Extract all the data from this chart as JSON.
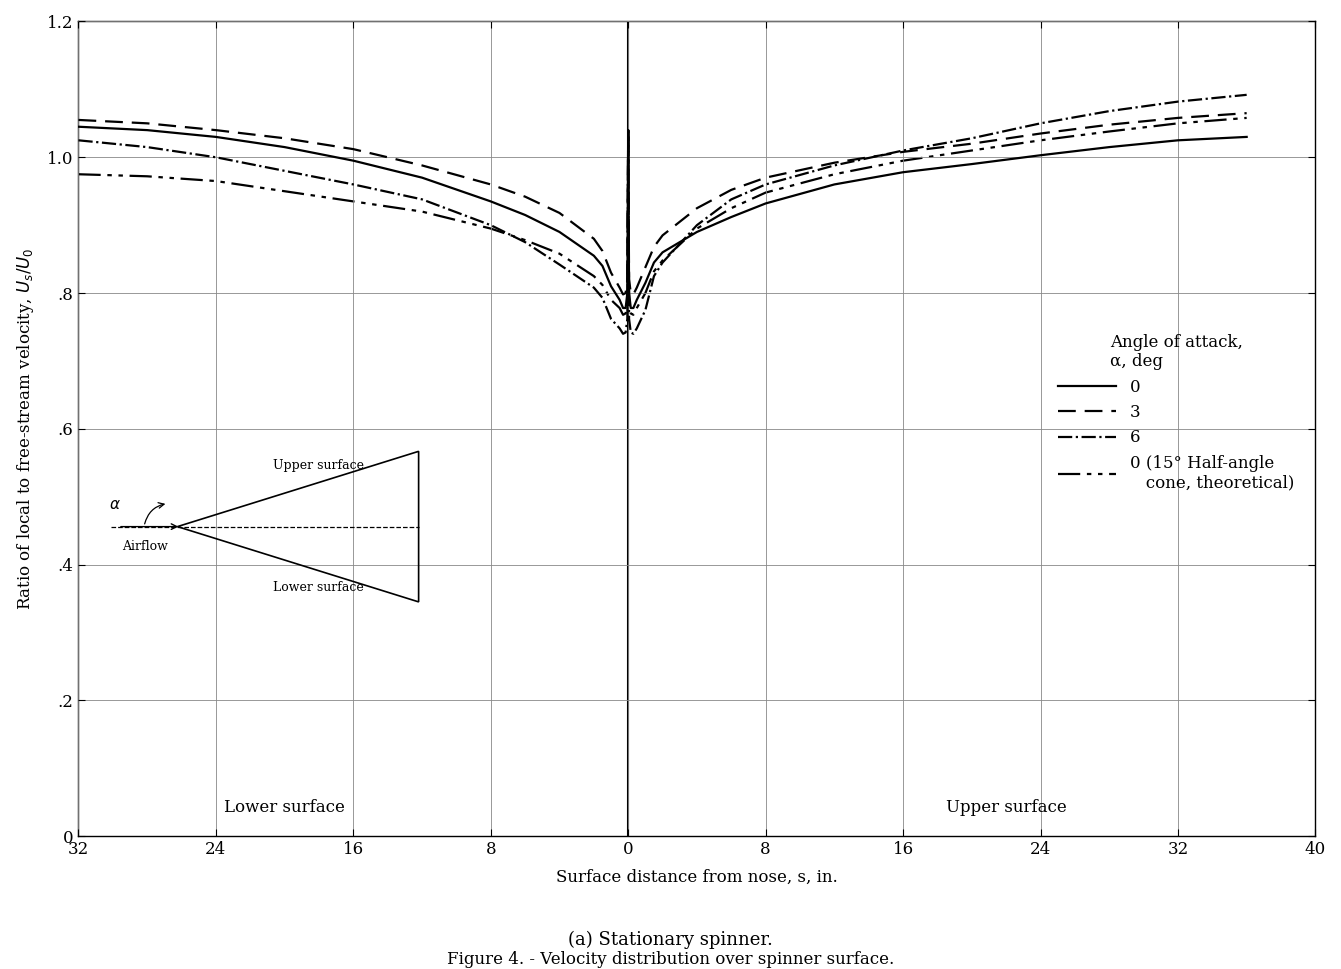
{
  "title_figure": "Figure 4. - Velocity distribution over spinner surface.",
  "subtitle": "(a) Stationary spinner.",
  "xlabel": "Surface distance from nose, s, in.",
  "ylabel": "Ratio of local to free-stream velocity, U_s/U_0",
  "xlim": [
    -32,
    40
  ],
  "ylim": [
    0,
    1.2
  ],
  "xticks": [
    -32,
    -24,
    -16,
    -8,
    0,
    8,
    16,
    24,
    32,
    40
  ],
  "yticks": [
    0,
    0.2,
    0.4,
    0.6,
    0.8,
    1.0,
    1.2
  ],
  "ytick_labels": [
    "0",
    ".2",
    ".4",
    ".6",
    ".8",
    "1.0",
    "1.2"
  ],
  "legend_title": "Angle of attack,\nα, deg",
  "legend_entries": [
    "0",
    "3",
    "6",
    "0 (15° Half-angle\n   cone, theoretical)"
  ],
  "background_color": "#ffffff",
  "line_color": "#000000",
  "label_lower_left": "Lower surface",
  "label_upper_right": "Upper surface",
  "curve_alpha0_x": [
    -32,
    -28,
    -24,
    -20,
    -16,
    -12,
    -8,
    -6,
    -4,
    -2,
    -1.5,
    -1.0,
    -0.5,
    -0.3,
    -0.15,
    -0.05,
    0.0,
    0.05,
    0.15,
    0.3,
    0.5,
    1.0,
    1.5,
    2,
    4,
    6,
    8,
    12,
    16,
    20,
    24,
    28,
    32,
    36
  ],
  "curve_alpha0_y": [
    1.045,
    1.04,
    1.03,
    1.015,
    0.995,
    0.97,
    0.935,
    0.915,
    0.89,
    0.855,
    0.84,
    0.81,
    0.79,
    0.778,
    0.778,
    0.8,
    1.04,
    0.8,
    0.778,
    0.778,
    0.79,
    0.815,
    0.845,
    0.86,
    0.89,
    0.912,
    0.932,
    0.96,
    0.978,
    0.99,
    1.003,
    1.015,
    1.025,
    1.03
  ],
  "curve_alpha3_x": [
    -32,
    -28,
    -24,
    -20,
    -16,
    -12,
    -8,
    -6,
    -4,
    -2,
    -1.5,
    -1.0,
    -0.5,
    -0.3,
    -0.15,
    -0.05,
    0.0,
    0.05,
    0.15,
    0.3,
    0.5,
    1.0,
    1.5,
    2,
    4,
    6,
    8,
    12,
    16,
    20,
    24,
    28,
    32,
    36
  ],
  "curve_alpha3_y": [
    1.055,
    1.05,
    1.04,
    1.028,
    1.012,
    0.988,
    0.96,
    0.942,
    0.918,
    0.88,
    0.862,
    0.83,
    0.808,
    0.798,
    0.8,
    0.82,
    1.04,
    0.82,
    0.8,
    0.798,
    0.808,
    0.838,
    0.868,
    0.885,
    0.925,
    0.952,
    0.97,
    0.992,
    1.008,
    1.02,
    1.035,
    1.048,
    1.058,
    1.065
  ],
  "curve_alpha6_x": [
    -32,
    -28,
    -24,
    -20,
    -16,
    -12,
    -8,
    -6,
    -4,
    -2,
    -1.5,
    -1.0,
    -0.5,
    -0.3,
    -0.15,
    -0.05,
    0.0,
    0.05,
    0.15,
    0.3,
    0.5,
    1.0,
    1.5,
    2,
    4,
    6,
    8,
    12,
    16,
    20,
    24,
    28,
    32,
    36
  ],
  "curve_alpha6_y": [
    1.025,
    1.015,
    1.0,
    0.98,
    0.96,
    0.938,
    0.9,
    0.875,
    0.842,
    0.808,
    0.793,
    0.762,
    0.748,
    0.74,
    0.742,
    0.762,
    1.04,
    0.762,
    0.742,
    0.74,
    0.748,
    0.775,
    0.825,
    0.845,
    0.9,
    0.938,
    0.96,
    0.988,
    1.01,
    1.028,
    1.05,
    1.068,
    1.082,
    1.092
  ],
  "curve_theory_x": [
    -32,
    -28,
    -24,
    -20,
    -16,
    -12,
    -8,
    -6,
    -4,
    -2,
    -1.5,
    -1.0,
    -0.5,
    -0.3,
    -0.15,
    -0.05,
    0.0,
    0.05,
    0.15,
    0.3,
    0.5,
    1.0,
    1.5,
    2,
    4,
    6,
    8,
    12,
    16,
    20,
    24,
    28,
    32,
    36
  ],
  "curve_theory_y": [
    0.975,
    0.972,
    0.965,
    0.95,
    0.935,
    0.92,
    0.895,
    0.878,
    0.858,
    0.825,
    0.812,
    0.79,
    0.778,
    0.768,
    0.77,
    0.788,
    1.04,
    0.788,
    0.77,
    0.768,
    0.778,
    0.8,
    0.832,
    0.848,
    0.895,
    0.925,
    0.948,
    0.975,
    0.995,
    1.01,
    1.025,
    1.038,
    1.05,
    1.058
  ]
}
